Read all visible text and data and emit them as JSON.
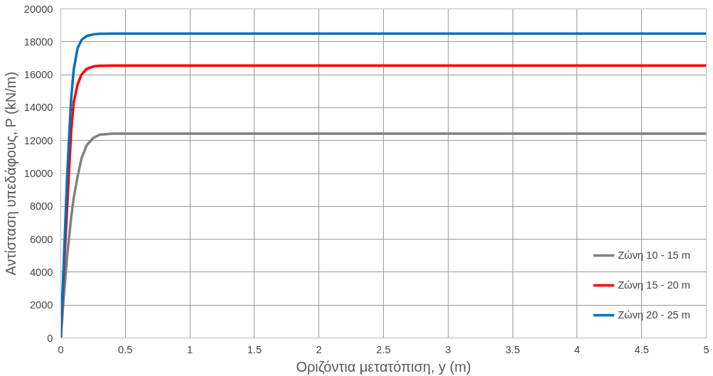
{
  "chart_data": {
    "type": "line",
    "xlabel": "Οριζόντια μετατόπιση, y (m)",
    "ylabel": "Αντίσταση υπεδάφους, P (kN/m)",
    "xlim": [
      0,
      5
    ],
    "xticks": [
      0,
      0.5,
      1,
      1.5,
      2,
      2.5,
      3,
      3.5,
      4,
      4.5,
      5
    ],
    "ylim": [
      0,
      20000
    ],
    "yticks": [
      0,
      2000,
      4000,
      6000,
      8000,
      10000,
      12000,
      14000,
      16000,
      18000,
      20000
    ],
    "grid": true,
    "legend": "bottom right",
    "marker": "none",
    "line_style": "solid",
    "series": [
      {
        "name": "Ζώνη 10 - 15 m",
        "color": "#808080",
        "x": [
          0,
          0.02,
          0.05,
          0.08,
          0.1,
          0.13,
          0.16,
          0.2,
          0.25,
          0.3,
          0.4,
          5
        ],
        "values": [
          0,
          2200,
          5000,
          7300,
          8500,
          9800,
          10900,
          11700,
          12150,
          12350,
          12420,
          12420
        ]
      },
      {
        "name": "Ζώνη 15 - 20 m",
        "color": "#ff0000",
        "x": [
          0,
          0.02,
          0.05,
          0.08,
          0.1,
          0.13,
          0.16,
          0.2,
          0.25,
          0.3,
          0.4,
          5
        ],
        "values": [
          0,
          3500,
          8000,
          12500,
          14300,
          15400,
          16000,
          16350,
          16500,
          16540,
          16550,
          16550
        ]
      },
      {
        "name": "Ζώνη 20 - 25 m",
        "color": "#0070c0",
        "x": [
          0,
          0.02,
          0.05,
          0.08,
          0.1,
          0.13,
          0.16,
          0.2,
          0.25,
          0.3,
          0.4,
          5
        ],
        "values": [
          0,
          4000,
          10000,
          14500,
          16300,
          17600,
          18100,
          18350,
          18450,
          18490,
          18500,
          18500
        ]
      }
    ]
  }
}
